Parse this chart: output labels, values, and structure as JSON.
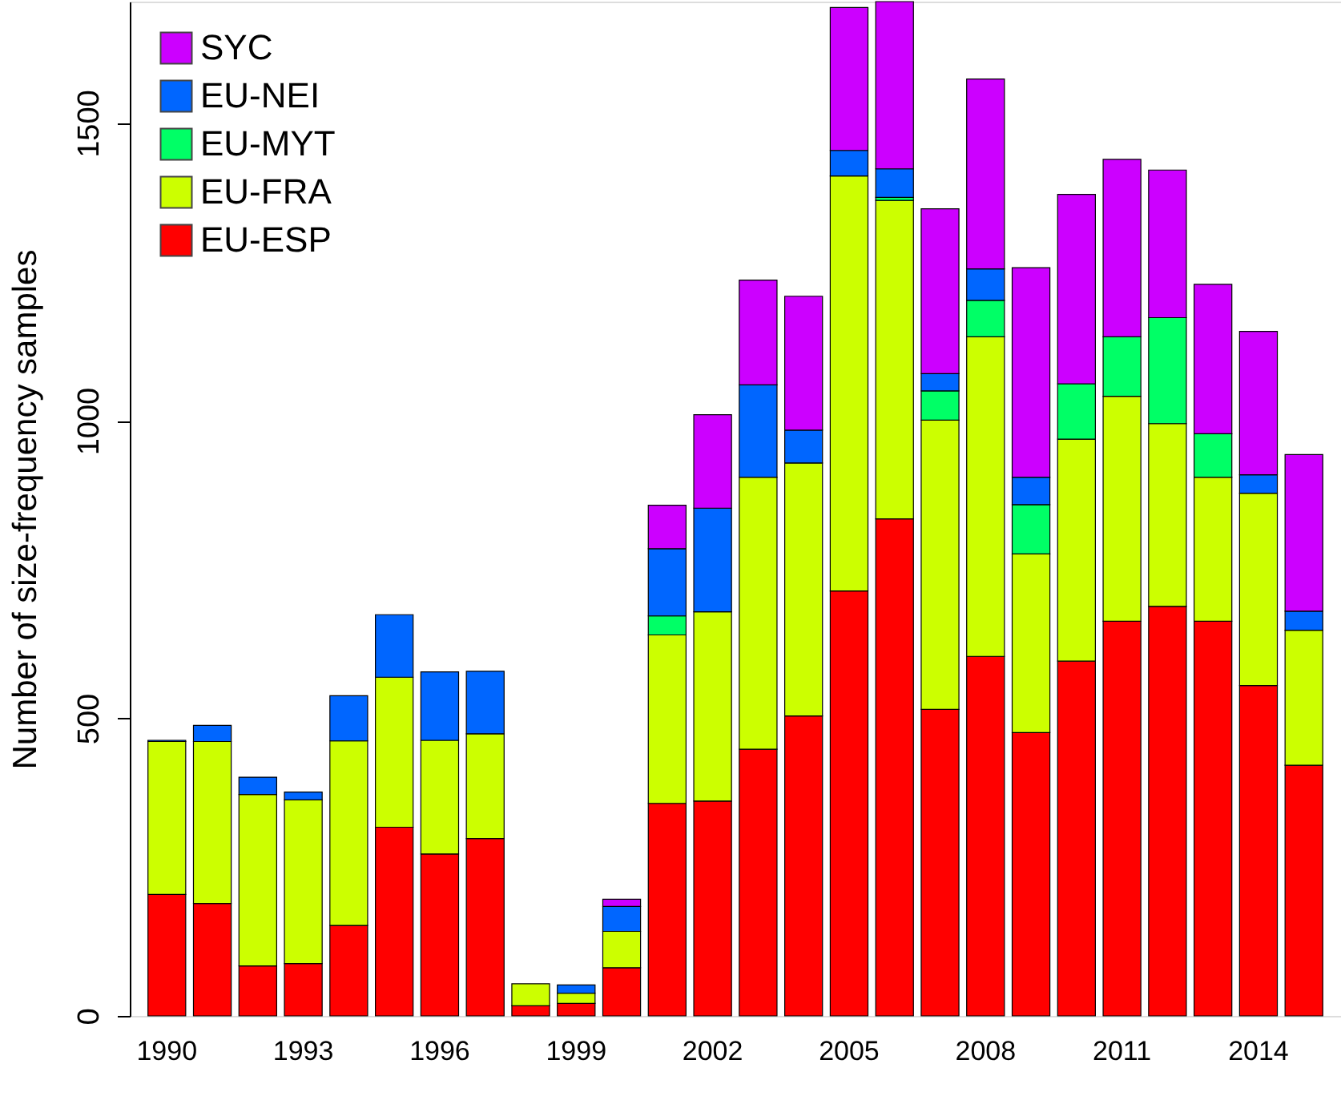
{
  "chart_data": {
    "type": "bar",
    "ylabel": "Number of size-frequency samples",
    "stacked": true,
    "legend": "top left",
    "categories": [
      "1990",
      null,
      null,
      "1993",
      null,
      null,
      "1996",
      null,
      null,
      "1999",
      null,
      null,
      "2002",
      null,
      null,
      "2005",
      null,
      null,
      "2008",
      null,
      null,
      "2011",
      null,
      null,
      "2014",
      null
    ],
    "series": [
      {
        "name": "EU-ESP",
        "color": "#ff0000",
        "values": [
          204,
          189,
          84,
          88,
          152,
          317,
          272,
          298,
          17,
          21,
          81,
          357,
          361,
          448,
          504,
          714,
          835,
          515,
          604,
          476,
          596,
          663,
          688,
          663,
          555,
          421
        ]
      },
      {
        "name": "EU-FRA",
        "color": "#ccff00",
        "values": [
          257,
          272,
          288,
          275,
          310,
          252,
          191,
          176,
          37,
          17,
          61,
          283,
          318,
          457,
          425,
          697,
          535,
          486,
          537,
          300,
          373,
          378,
          307,
          242,
          323,
          227
        ]
      },
      {
        "name": "EU-MYT",
        "color": "#00ff66",
        "values": [
          null,
          null,
          null,
          null,
          null,
          null,
          null,
          null,
          null,
          null,
          null,
          32,
          null,
          null,
          null,
          null,
          5,
          49,
          61,
          83,
          93,
          100,
          178,
          73,
          null,
          null
        ]
      },
      {
        "name": "EU-NEI",
        "color": "#0066ff",
        "values": [
          2,
          27,
          29,
          13,
          76,
          105,
          115,
          105,
          null,
          14,
          42,
          113,
          174,
          155,
          55,
          43,
          48,
          29,
          53,
          46,
          null,
          null,
          null,
          null,
          31,
          32
        ]
      },
      {
        "name": "SYC",
        "color": "#cc00ff",
        "values": [
          null,
          null,
          null,
          null,
          null,
          null,
          null,
          null,
          null,
          null,
          12,
          73,
          157,
          176,
          225,
          240,
          281,
          277,
          319,
          352,
          318,
          298,
          248,
          251,
          241,
          263
        ]
      }
    ],
    "ylim": [
      0,
      1704
    ],
    "yticks": [
      0,
      500,
      1000,
      1500
    ]
  }
}
